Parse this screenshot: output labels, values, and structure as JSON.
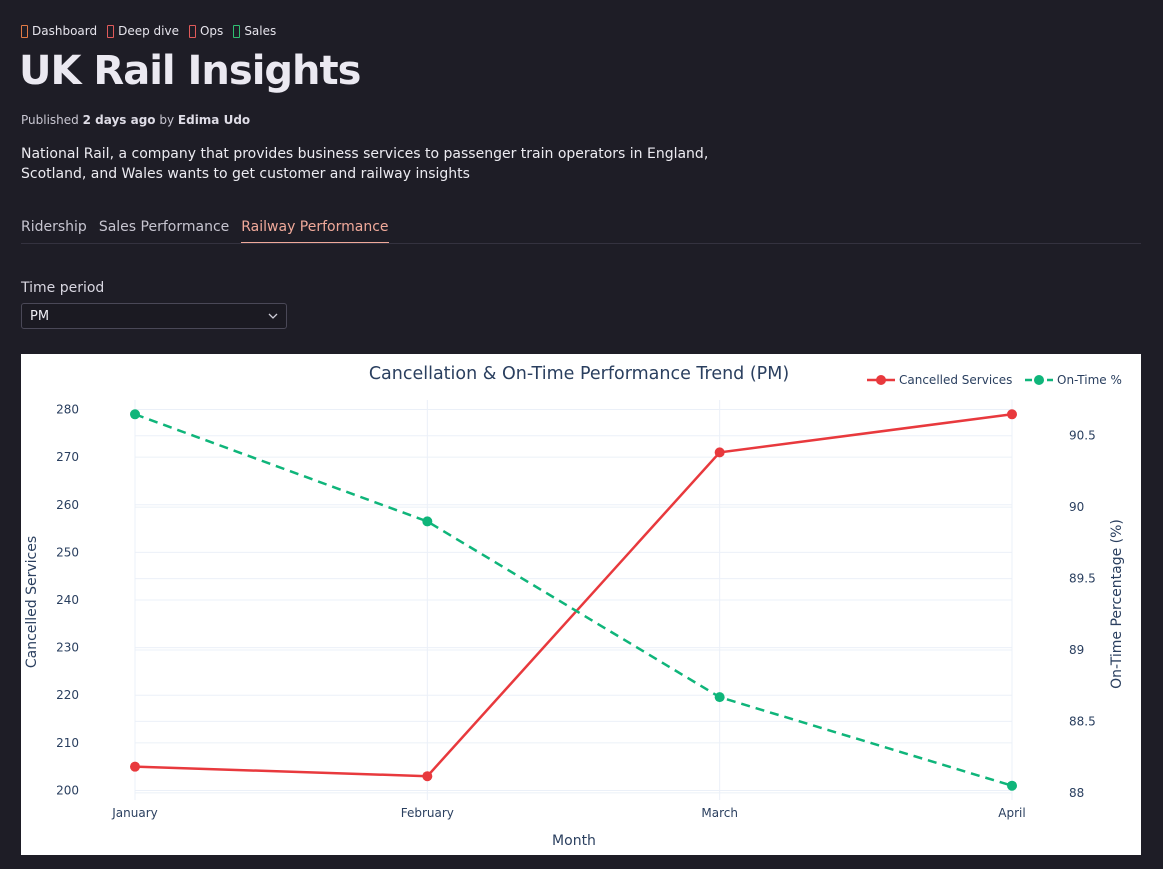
{
  "tags": [
    {
      "label": "Dashboard",
      "color": "#e07a45"
    },
    {
      "label": "Deep dive",
      "color": "#e05a5a"
    },
    {
      "label": "Ops",
      "color": "#e05a5a"
    },
    {
      "label": "Sales",
      "color": "#2fbf71"
    }
  ],
  "page": {
    "title": "UK Rail Insights",
    "published_prefix": "Published",
    "published_time": "2 days ago",
    "by": "by",
    "author": "Edima Udo",
    "description": "National Rail, a company that provides business services to passenger train operators in England, Scotland, and Wales wants to get customer and railway insights"
  },
  "tabs": [
    {
      "label": "Ridership",
      "active": false
    },
    {
      "label": "Sales Performance",
      "active": false
    },
    {
      "label": "Railway Performance",
      "active": true
    }
  ],
  "filter": {
    "label": "Time period",
    "value": "PM"
  },
  "chart_data": {
    "type": "line",
    "title": "Cancellation & On-Time Performance Trend (PM)",
    "xlabel": "Month",
    "categories": [
      "January",
      "February",
      "March",
      "April"
    ],
    "y_left": {
      "label": "Cancelled Services",
      "range": [
        198,
        282
      ],
      "ticks": [
        200,
        210,
        220,
        230,
        240,
        250,
        260,
        270,
        280
      ]
    },
    "y_right": {
      "label": "On-Time Percentage (%)",
      "range": [
        87.95,
        90.75
      ],
      "ticks": [
        "88",
        "88.5",
        "89",
        "89.5",
        "90",
        "90.5"
      ]
    },
    "series": [
      {
        "name": "Cancelled Services",
        "axis": "left",
        "values": [
          205,
          203,
          271,
          279
        ],
        "color": "#e8393d",
        "dash": "solid"
      },
      {
        "name": "On-Time %",
        "axis": "right",
        "values": [
          90.65,
          89.9,
          88.67,
          88.05
        ],
        "color": "#0fb57a",
        "dash": "dashed"
      }
    ],
    "legend": "top-right",
    "grid": true
  }
}
